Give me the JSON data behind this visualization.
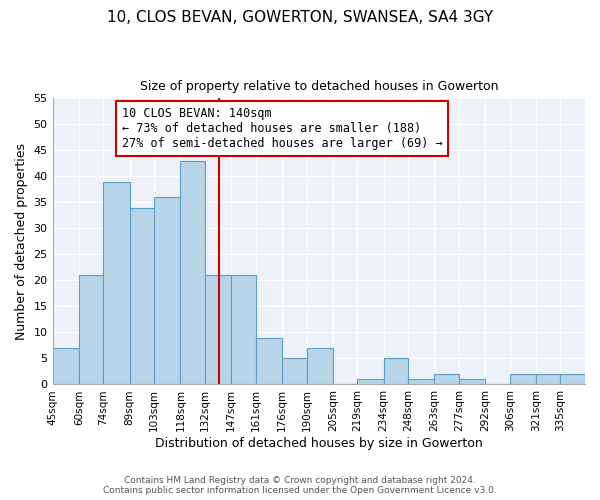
{
  "title": "10, CLOS BEVAN, GOWERTON, SWANSEA, SA4 3GY",
  "subtitle": "Size of property relative to detached houses in Gowerton",
  "xlabel": "Distribution of detached houses by size in Gowerton",
  "ylabel": "Number of detached properties",
  "bin_labels": [
    "45sqm",
    "60sqm",
    "74sqm",
    "89sqm",
    "103sqm",
    "118sqm",
    "132sqm",
    "147sqm",
    "161sqm",
    "176sqm",
    "190sqm",
    "205sqm",
    "219sqm",
    "234sqm",
    "248sqm",
    "263sqm",
    "277sqm",
    "292sqm",
    "306sqm",
    "321sqm",
    "335sqm"
  ],
  "bin_edges": [
    45,
    60,
    74,
    89,
    103,
    118,
    132,
    147,
    161,
    176,
    190,
    205,
    219,
    234,
    248,
    263,
    277,
    292,
    306,
    321,
    335,
    349
  ],
  "counts": [
    7,
    21,
    39,
    34,
    36,
    43,
    21,
    21,
    9,
    5,
    7,
    0,
    1,
    5,
    1,
    2,
    1,
    0,
    2,
    2,
    2
  ],
  "bar_color": "#b8d4e8",
  "bar_edge_color": "#5a9ec9",
  "property_line_x": 140,
  "property_line_color": "#cc0000",
  "annotation_box_text": "10 CLOS BEVAN: 140sqm\n← 73% of detached houses are smaller (188)\n27% of semi-detached houses are larger (69) →",
  "ylim": [
    0,
    55
  ],
  "yticks": [
    0,
    5,
    10,
    15,
    20,
    25,
    30,
    35,
    40,
    45,
    50,
    55
  ],
  "footer_line1": "Contains HM Land Registry data © Crown copyright and database right 2024.",
  "footer_line2": "Contains public sector information licensed under the Open Government Licence v3.0.",
  "background_color": "#edf2f9",
  "grid_color": "#ffffff",
  "fig_bg_color": "#ffffff"
}
